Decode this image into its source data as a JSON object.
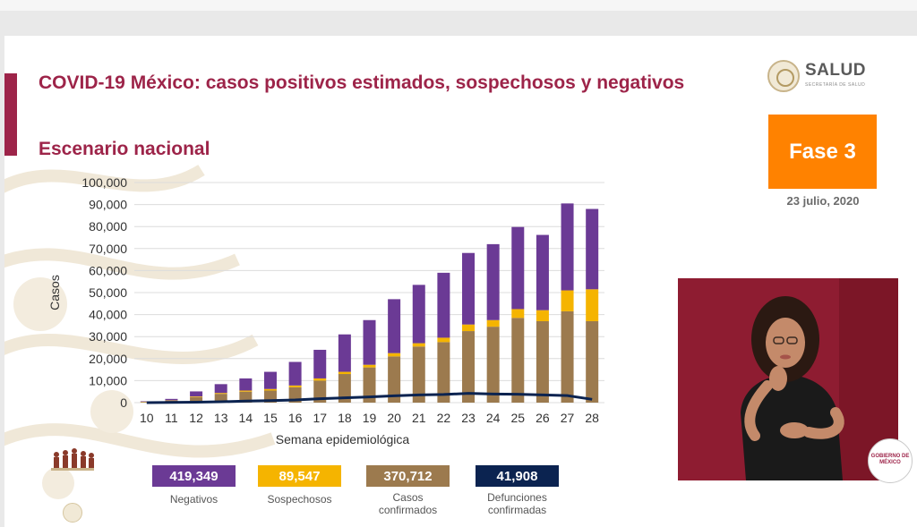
{
  "slide": {
    "title": "COVID-19 México: casos positivos estimados, sospechosos y negativos",
    "subtitle": "Escenario nacional",
    "logo": {
      "name": "SALUD",
      "sub": "SECRETARÍA DE SALUD"
    },
    "phase": "Fase 3",
    "date": "23 julio, 2020",
    "mini_logo": "GOBIERNO DE MÉXICO"
  },
  "colors": {
    "negativos": "#6b3a95",
    "sospechosos": "#f5b400",
    "confirmados": "#9c7a4e",
    "defunciones": "#0b2350",
    "accent": "#9d2449",
    "phase": "#ff8200"
  },
  "chart_data": {
    "type": "bar",
    "stacked": true,
    "ylabel": "Casos",
    "xlabel": "Semana epidemiológica",
    "ylim": [
      0,
      100000
    ],
    "yticks": [
      "0",
      "10,000",
      "20,000",
      "30,000",
      "40,000",
      "50,000",
      "60,000",
      "70,000",
      "80,000",
      "90,000",
      "100,000"
    ],
    "grid": true,
    "categories": [
      "10",
      "11",
      "12",
      "13",
      "14",
      "15",
      "16",
      "17",
      "18",
      "19",
      "20",
      "21",
      "22",
      "23",
      "24",
      "25",
      "26",
      "27",
      "28"
    ],
    "series": [
      {
        "key": "confirmados",
        "values": [
          300,
          900,
          2500,
          4000,
          5000,
          5500,
          7000,
          10000,
          13000,
          16000,
          21000,
          25500,
          27500,
          32500,
          34500,
          38500,
          37000,
          41500,
          37000
        ]
      },
      {
        "key": "sospechosos",
        "values": [
          100,
          150,
          300,
          400,
          500,
          700,
          800,
          1000,
          1000,
          1200,
          1500,
          1500,
          2000,
          3000,
          3000,
          4000,
          5000,
          9500,
          14500
        ]
      },
      {
        "key": "negativos",
        "values": [
          200,
          650,
          2300,
          4000,
          5500,
          7800,
          10700,
          13000,
          17000,
          20300,
          24500,
          26500,
          29500,
          32500,
          34500,
          37300,
          34200,
          39500,
          36500
        ]
      }
    ],
    "line": {
      "key": "defunciones",
      "values": [
        0,
        100,
        200,
        400,
        700,
        900,
        1200,
        1800,
        2200,
        2600,
        3100,
        3500,
        3700,
        4200,
        3900,
        3800,
        3500,
        3200,
        1500
      ]
    }
  },
  "legend": [
    {
      "key": "negativos",
      "value": "419,349",
      "label": "Negativos"
    },
    {
      "key": "sospechosos",
      "value": "89,547",
      "label": "Sospechosos"
    },
    {
      "key": "confirmados",
      "value": "370,712",
      "label": "Casos confirmados"
    },
    {
      "key": "defunciones",
      "value": "41,908",
      "label": "Defunciones confirmadas"
    }
  ]
}
